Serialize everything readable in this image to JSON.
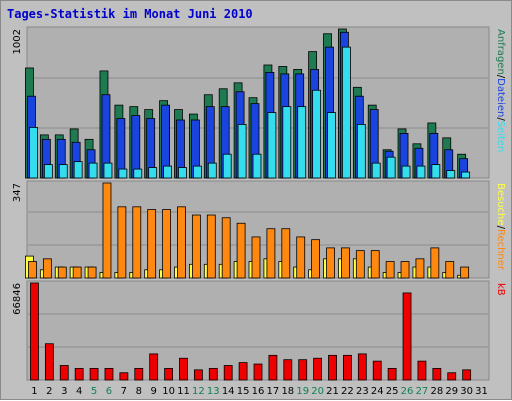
{
  "title": "Tages-Statistik im Monat Juni 2010",
  "colors": {
    "background": "#c0c0c0",
    "panel": "#b0b0b0",
    "title": "#0000cc",
    "anfragen": "#1e7a50",
    "dateien": "#1a44e0",
    "seiten": "#33ddee",
    "besuche": "#ffff44",
    "rechner": "#ff8811",
    "kb": "#ee0000",
    "weekend_label": "#108050"
  },
  "chart_data": [
    {
      "type": "bar",
      "title": "Tages-Statistik im Monat Juni 2010",
      "categories": [
        "1",
        "2",
        "3",
        "4",
        "5",
        "6",
        "7",
        "8",
        "9",
        "10",
        "11",
        "12",
        "13",
        "14",
        "15",
        "16",
        "17",
        "18",
        "19",
        "20",
        "21",
        "22",
        "23",
        "24",
        "25",
        "26",
        "27",
        "28",
        "29",
        "30",
        "31"
      ],
      "weekend_days": [
        "5",
        "6",
        "12",
        "13",
        "19",
        "20",
        "26",
        "27"
      ],
      "y_label": "1002",
      "ylim": [
        0,
        1002
      ],
      "grid": true,
      "legend": [
        "Anfragen",
        "Dateien",
        "Seiten"
      ],
      "series": [
        {
          "name": "Anfragen",
          "color": "#1e7a50",
          "values": [
            740,
            290,
            290,
            330,
            260,
            720,
            490,
            480,
            460,
            520,
            460,
            430,
            560,
            600,
            640,
            540,
            760,
            750,
            730,
            850,
            970,
            1002,
            610,
            490,
            190,
            330,
            230,
            370,
            270,
            160,
            0
          ]
        },
        {
          "name": "Dateien",
          "color": "#1a44e0",
          "values": [
            550,
            260,
            260,
            240,
            190,
            560,
            400,
            420,
            400,
            490,
            390,
            390,
            480,
            480,
            580,
            500,
            710,
            700,
            700,
            730,
            880,
            980,
            550,
            460,
            180,
            300,
            200,
            300,
            190,
            130,
            0
          ]
        },
        {
          "name": "Seiten",
          "color": "#33ddee",
          "values": [
            340,
            90,
            90,
            110,
            100,
            100,
            60,
            60,
            70,
            80,
            70,
            80,
            100,
            160,
            360,
            160,
            440,
            480,
            480,
            590,
            440,
            880,
            360,
            100,
            140,
            80,
            80,
            90,
            50,
            40,
            0
          ]
        }
      ]
    },
    {
      "type": "bar",
      "categories": [
        "1",
        "2",
        "3",
        "4",
        "5",
        "6",
        "7",
        "8",
        "9",
        "10",
        "11",
        "12",
        "13",
        "14",
        "15",
        "16",
        "17",
        "18",
        "19",
        "20",
        "21",
        "22",
        "23",
        "24",
        "25",
        "26",
        "27",
        "28",
        "29",
        "30",
        "31"
      ],
      "y_label": "347",
      "ylim": [
        0,
        347
      ],
      "grid": true,
      "legend": [
        "Besuche",
        "Rechner"
      ],
      "series": [
        {
          "name": "Besuche",
          "color": "#ffff44",
          "values": [
            80,
            30,
            40,
            40,
            40,
            20,
            20,
            20,
            30,
            30,
            40,
            50,
            50,
            50,
            60,
            60,
            70,
            60,
            40,
            30,
            70,
            70,
            70,
            40,
            20,
            20,
            40,
            40,
            20,
            10,
            0
          ]
        },
        {
          "name": "Rechner",
          "color": "#ff8811",
          "values": [
            60,
            70,
            40,
            40,
            40,
            347,
            260,
            260,
            250,
            250,
            260,
            230,
            230,
            220,
            200,
            150,
            180,
            180,
            150,
            140,
            110,
            110,
            100,
            100,
            60,
            60,
            70,
            110,
            60,
            40,
            0
          ]
        }
      ]
    },
    {
      "type": "bar",
      "categories": [
        "1",
        "2",
        "3",
        "4",
        "5",
        "6",
        "7",
        "8",
        "9",
        "10",
        "11",
        "12",
        "13",
        "14",
        "15",
        "16",
        "17",
        "18",
        "19",
        "20",
        "21",
        "22",
        "23",
        "24",
        "25",
        "26",
        "27",
        "28",
        "29",
        "30",
        "31"
      ],
      "y_label": "66846",
      "ylim": [
        0,
        66846
      ],
      "grid": true,
      "legend": [
        "kB"
      ],
      "series": [
        {
          "name": "kB",
          "color": "#ee0000",
          "values": [
            66846,
            25000,
            10000,
            8000,
            8000,
            8000,
            5000,
            8000,
            18000,
            8000,
            15000,
            7000,
            8000,
            10000,
            12000,
            11000,
            17000,
            14000,
            14000,
            15000,
            17000,
            17000,
            18000,
            13000,
            8000,
            60000,
            13000,
            8000,
            5000,
            7000,
            0
          ]
        }
      ]
    }
  ]
}
